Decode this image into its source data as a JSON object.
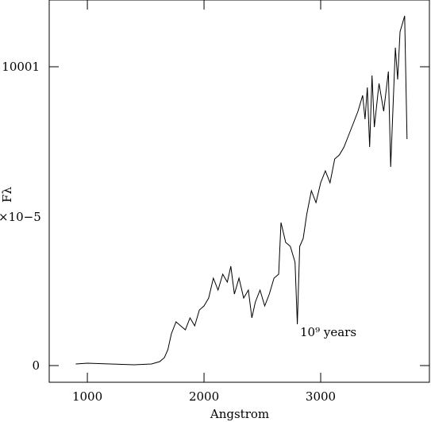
{
  "chart_data": {
    "type": "line",
    "xlabel": "Angstrom",
    "ylabel": "Fλ",
    "ylabel_scale": "×10−5",
    "annotation": "10⁹ years",
    "xlim": [
      673,
      3932
    ],
    "ylim": [
      -559,
      12235
    ],
    "xticks": [
      1000,
      2000,
      3000
    ],
    "yticks": [
      0,
      10001
    ],
    "color": "#000000",
    "x": [
      900,
      1000,
      1200,
      1400,
      1550,
      1620,
      1660,
      1690,
      1720,
      1760,
      1800,
      1840,
      1880,
      1920,
      1960,
      2000,
      2040,
      2080,
      2120,
      2160,
      2200,
      2230,
      2260,
      2300,
      2340,
      2380,
      2410,
      2440,
      2480,
      2520,
      2560,
      2600,
      2640,
      2660,
      2700,
      2740,
      2780,
      2800,
      2820,
      2850,
      2880,
      2920,
      2960,
      3000,
      3040,
      3080,
      3120,
      3160,
      3200,
      3240,
      3280,
      3320,
      3360,
      3380,
      3400,
      3420,
      3440,
      3460,
      3500,
      3540,
      3580,
      3600,
      3640,
      3660,
      3680,
      3700,
      3720,
      3740
    ],
    "values": [
      53,
      80,
      53,
      27,
      53,
      133,
      266,
      532,
      1064,
      1463,
      1330,
      1197,
      1596,
      1330,
      1862,
      1995,
      2261,
      2926,
      2527,
      3059,
      2793,
      3325,
      2394,
      2926,
      2261,
      2527,
      1596,
      2128,
      2527,
      1995,
      2394,
      2926,
      3059,
      4788,
      4123,
      3990,
      3458,
      1383,
      3990,
      4256,
      5054,
      5852,
      5453,
      6118,
      6517,
      6118,
      6916,
      7049,
      7315,
      7714,
      8113,
      8512,
      9044,
      8246,
      9310,
      7315,
      9709,
      7980,
      9443,
      8512,
      9842,
      6650,
      10640,
      9576,
      11172,
      11438,
      11704,
      7581
    ]
  }
}
